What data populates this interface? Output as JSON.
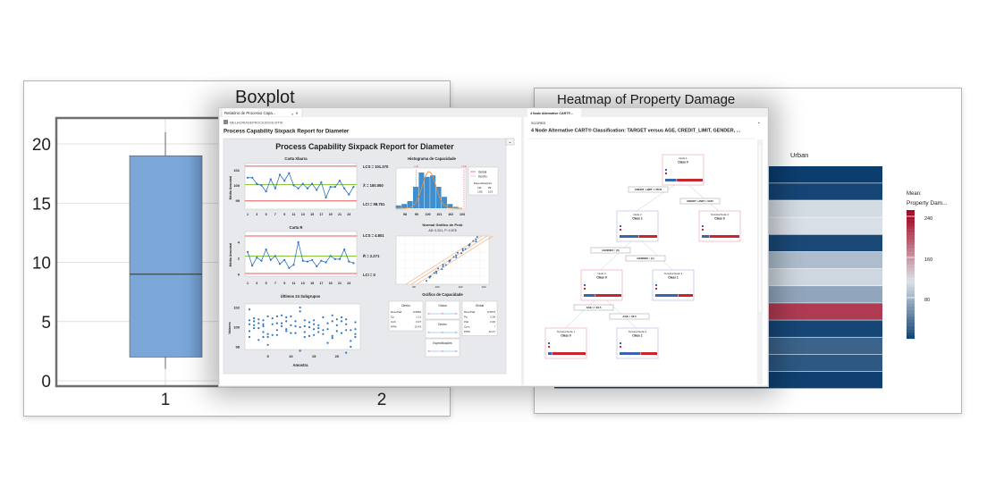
{
  "boxplot_window": {
    "title": "Boxplot",
    "y_ticks": [
      "0",
      "5",
      "10",
      "15",
      "20"
    ],
    "categories": [
      "1",
      "2"
    ],
    "box": {
      "min": 1,
      "q1": 2,
      "median": 9,
      "q3": 19,
      "max": 21
    },
    "box_color": "#7aa6d8"
  },
  "heatmap_window": {
    "title": "Heatmap of Property Damage",
    "column_label": "Urban",
    "legend_title_1": "Mean:",
    "legend_title_2": "Property Dam...",
    "legend_ticks": [
      "240",
      "160",
      "80"
    ],
    "row_values": [
      30,
      35,
      135,
      138,
      38,
      115,
      132,
      100,
      235,
      36,
      55,
      48,
      32
    ],
    "colors": {
      "low": "#0b3d6f",
      "mid": "#dde2e8",
      "high": "#a30f2a"
    }
  },
  "capability_pane": {
    "tab_label": "Relatório de Processo Capa...",
    "file_name": "MELHORIADEPROCESSOS.MTW",
    "header": "Process Capability Sixpack Report for Diameter",
    "report_title": "Process Capability Sixpack Report for Diameter",
    "xbar_chart": {
      "title": "Carta Xbarra",
      "ylabel": "Média Amostral",
      "y_ticks": [
        "101",
        "100",
        "99"
      ],
      "x_ticks": [
        "1",
        "3",
        "5",
        "7",
        "9",
        "11",
        "13",
        "15",
        "17",
        "19",
        "21",
        "23"
      ],
      "ucl_label": "LCS = 101.370",
      "center_label": "X̄ = 100.050",
      "lcl_label": "LCI = 98.751",
      "ucl": 101.37,
      "center": 100.05,
      "lcl": 98.751,
      "values": [
        100.5,
        100.5,
        100.1,
        100.0,
        99.6,
        100.4,
        99.8,
        100.7,
        100.3,
        100.8,
        100.0,
        99.8,
        100.1,
        99.8,
        100.1,
        99.7,
        100.2,
        99.2,
        99.9,
        99.9,
        100.3,
        99.8,
        99.4,
        99.9
      ]
    },
    "r_chart": {
      "title": "Carta R",
      "ylabel": "Média Amostral",
      "y_ticks": [
        "4",
        "2",
        "0"
      ],
      "x_ticks": [
        "1",
        "3",
        "5",
        "7",
        "9",
        "11",
        "13",
        "15",
        "17",
        "19",
        "21",
        "23"
      ],
      "ucl_label": "LCS = 4.801",
      "center_label": "R̄ = 2.271",
      "lcl_label": "LCI = 0",
      "ucl": 4.801,
      "center": 2.271,
      "lcl": 0,
      "values": [
        2.8,
        1.1,
        2.1,
        1.7,
        3.1,
        1.8,
        2.3,
        1.3,
        1.8,
        0.8,
        1.2,
        4.0,
        1.7,
        1.6,
        1.8,
        1.0,
        1.7,
        1.5,
        2.3,
        1.9,
        1.9,
        3.1,
        1.6,
        1.4
      ]
    },
    "last_subgroups": {
      "title": "Últimos 24 Subgrupos",
      "ylabel": "Valores",
      "xlabel": "Amostra",
      "y_ticks": [
        "102",
        "100",
        "98"
      ],
      "x_ticks": [
        "5",
        "10",
        "15",
        "20"
      ],
      "values": [
        [
          101.8,
          100.7,
          100.3,
          99.6,
          99.0
        ],
        [
          100.9,
          100.6,
          100.2,
          99.9
        ],
        [
          100.8,
          100.4,
          99.9,
          98.7
        ],
        [
          100.7,
          100.1,
          99.5,
          99.0,
          100.3
        ],
        [
          101.1,
          99.3,
          99.0,
          98.2
        ],
        [
          100.9,
          100.3,
          99.2
        ],
        [
          101.1,
          100.4,
          99.7,
          99.2
        ],
        [
          101.2,
          100.4,
          100.1
        ],
        [
          101.0,
          100.6,
          99.8,
          99.6
        ],
        [
          101.1,
          100.2,
          99.4
        ],
        [
          100.6,
          100.1,
          99.4
        ],
        [
          102.0,
          101.6,
          100.0,
          97.6
        ],
        [
          100.7,
          100.1,
          99.5,
          99.0
        ],
        [
          100.5,
          100.0,
          99.1
        ],
        [
          100.7,
          100.3,
          99.8,
          99.2
        ],
        [
          100.2,
          99.9,
          99.5
        ],
        [
          101.0,
          99.7,
          99.3
        ],
        [
          100.4,
          99.8,
          98.4
        ],
        [
          101.2,
          100.6,
          99.1,
          98.9
        ],
        [
          100.8,
          100.2,
          99.6
        ],
        [
          101.0,
          100.6,
          99.4
        ],
        [
          100.8,
          100.3,
          99.7,
          97.4
        ],
        [
          99.7,
          98.6,
          98.0
        ],
        [
          100.5,
          99.8,
          99.3,
          99.0
        ]
      ]
    },
    "histogram": {
      "title": "Histograma de Capacidade",
      "x_ticks": [
        "98",
        "99",
        "100",
        "101",
        "102",
        "103"
      ],
      "lsl_tag": "LIE",
      "usl_tag": "LSE",
      "legend": [
        "Global",
        "Dentro"
      ],
      "spec_title": "Especificações",
      "spec_rows": [
        [
          "LIE",
          "99"
        ],
        [
          "LSE",
          "103"
        ]
      ],
      "bin_start": 97.2,
      "bin_width": 0.5,
      "counts": [
        2,
        3,
        5,
        15,
        25,
        22,
        23,
        15,
        8,
        3,
        1
      ]
    },
    "prob_plot": {
      "title": "Normal Gráfico de Prob",
      "subtitle": "AD: 0.201, P: 0.878",
      "x_ticks": [
        "98",
        "100",
        "102",
        "104"
      ]
    },
    "capability_plot": {
      "title": "Gráfico de Capacidade",
      "within": {
        "title": "Dentro",
        "rows": [
          [
            "DesvPad",
            "0.5966"
          ],
          [
            "Cp",
            "1.11"
          ],
          [
            "CpK",
            "0.37"
          ],
          [
            "PPM",
            "13.43"
          ]
        ]
      },
      "overall": {
        "title": "Global",
        "rows": [
          [
            "DesvPad",
            "0.5573"
          ],
          [
            "Pp",
            "1.08"
          ],
          [
            "Ppk",
            "0.36"
          ],
          [
            "Cpm",
            "*"
          ],
          [
            "PPM",
            "12.07"
          ]
        ]
      },
      "intervals": [
        "Global",
        "Dentro",
        "Especificações"
      ]
    }
  },
  "cart_pane": {
    "tab_label": "4 Node Alternative CART®...",
    "section_label": "SCORED",
    "title": "4 Node Alternative CART® Classification: TARGET versus AGE, CREDIT_LIMIT, GENDER, ...",
    "nodes": [
      {
        "name": "Node 1",
        "cls": "Class 0",
        "kind": "red",
        "blue": 0.3
      },
      {
        "name": "Node 2",
        "cls": "Class 1",
        "kind": "blue",
        "blue": 0.5
      },
      {
        "name": "Terminal Node 4",
        "cls": "Class 0",
        "kind": "red",
        "blue": 0.2
      },
      {
        "name": "Node 3",
        "cls": "Class 0",
        "kind": "red",
        "blue": 0.3
      },
      {
        "name": "Terminal Node 3",
        "cls": "Class 1",
        "kind": "blue",
        "blue": 0.6
      },
      {
        "name": "Terminal Node 1",
        "cls": "Class 0",
        "kind": "red",
        "blue": 0.1
      },
      {
        "name": "Terminal Node 2",
        "cls": "Class 1",
        "kind": "blue",
        "blue": 0.55
      }
    ],
    "splits": [
      "CREDIT_LIMIT <=5545",
      "CREDIT_LIMIT > 5545",
      "GENDER = (0)",
      "GENDER = (1)",
      "AGE <= 33.5",
      "AGE > 33.5"
    ]
  }
}
